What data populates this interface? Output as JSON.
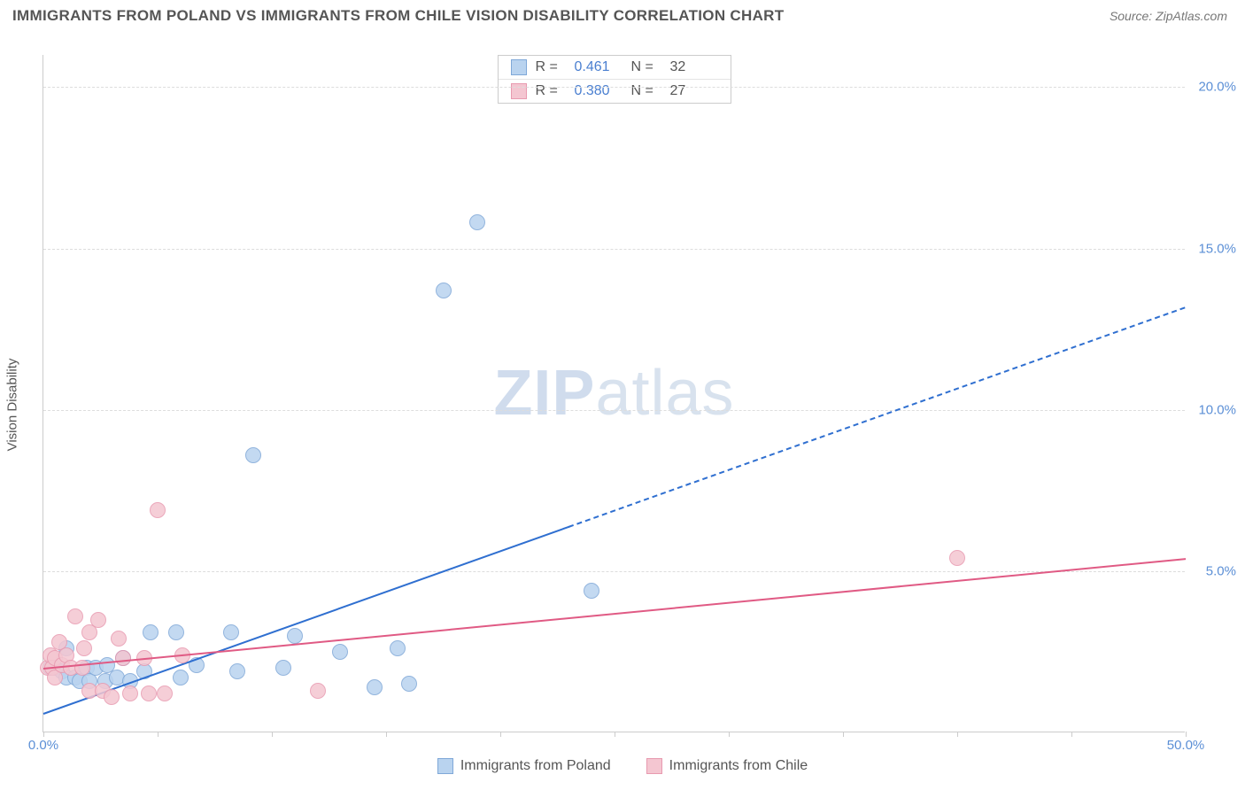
{
  "header": {
    "title": "IMMIGRANTS FROM POLAND VS IMMIGRANTS FROM CHILE VISION DISABILITY CORRELATION CHART",
    "source_prefix": "Source: ",
    "source_name": "ZipAtlas.com"
  },
  "chart": {
    "type": "scatter",
    "y_label": "Vision Disability",
    "watermark1": "ZIP",
    "watermark2": "atlas",
    "background_color": "#ffffff",
    "grid_color": "#dddddd",
    "axis_color": "#cccccc",
    "tick_label_color": "#5b8fd6",
    "xlim": [
      0,
      50
    ],
    "ylim": [
      0,
      21
    ],
    "x_ticks": [
      0,
      5,
      10,
      15,
      20,
      25,
      30,
      35,
      40,
      45,
      50
    ],
    "x_tick_labels": {
      "0": "0.0%",
      "50": "50.0%"
    },
    "y_grid": [
      5,
      10,
      15,
      20
    ],
    "y_tick_labels": {
      "5": "5.0%",
      "10": "10.0%",
      "15": "15.0%",
      "20": "20.0%"
    },
    "series": [
      {
        "key": "poland",
        "label": "Immigrants from Poland",
        "fill": "#b9d3ef",
        "stroke": "#7fa8d8",
        "line_color": "#2f6fd0",
        "marker_radius": 9,
        "marker_opacity": 0.85,
        "r_label": "R =",
        "r_value": "0.461",
        "n_label": "N =",
        "n_value": "32",
        "trend": {
          "x1": 0,
          "y1": 0.6,
          "x2": 50,
          "y2": 13.2,
          "solid_until_x": 23
        },
        "points": [
          [
            0.3,
            2.0
          ],
          [
            0.5,
            2.0
          ],
          [
            0.8,
            1.9
          ],
          [
            1.0,
            2.6
          ],
          [
            1.0,
            1.7
          ],
          [
            1.4,
            1.7
          ],
          [
            1.6,
            1.6
          ],
          [
            1.9,
            2.0
          ],
          [
            2.0,
            1.6
          ],
          [
            2.3,
            2.0
          ],
          [
            2.7,
            1.6
          ],
          [
            2.8,
            2.1
          ],
          [
            3.2,
            1.7
          ],
          [
            3.5,
            2.3
          ],
          [
            3.8,
            1.6
          ],
          [
            4.4,
            1.9
          ],
          [
            4.7,
            3.1
          ],
          [
            5.8,
            3.1
          ],
          [
            6.0,
            1.7
          ],
          [
            6.7,
            2.1
          ],
          [
            8.2,
            3.1
          ],
          [
            8.5,
            1.9
          ],
          [
            9.2,
            8.6
          ],
          [
            10.5,
            2.0
          ],
          [
            11.0,
            3.0
          ],
          [
            13.0,
            2.5
          ],
          [
            14.5,
            1.4
          ],
          [
            15.5,
            2.6
          ],
          [
            16.0,
            1.5
          ],
          [
            17.5,
            13.7
          ],
          [
            19.0,
            15.8
          ],
          [
            24.0,
            4.4
          ]
        ]
      },
      {
        "key": "chile",
        "label": "Immigrants from Chile",
        "fill": "#f4c6d1",
        "stroke": "#e89ab0",
        "line_color": "#e05a84",
        "marker_radius": 9,
        "marker_opacity": 0.85,
        "r_label": "R =",
        "r_value": "0.380",
        "n_label": "N =",
        "n_value": "27",
        "trend": {
          "x1": 0,
          "y1": 2.0,
          "x2": 50,
          "y2": 5.4,
          "solid_until_x": 50
        },
        "points": [
          [
            0.2,
            2.0
          ],
          [
            0.3,
            2.4
          ],
          [
            0.4,
            2.0
          ],
          [
            0.5,
            2.3
          ],
          [
            0.5,
            1.7
          ],
          [
            0.7,
            2.8
          ],
          [
            0.8,
            2.1
          ],
          [
            1.0,
            2.4
          ],
          [
            1.2,
            2.0
          ],
          [
            1.4,
            3.6
          ],
          [
            1.7,
            2.0
          ],
          [
            1.8,
            2.6
          ],
          [
            2.0,
            3.1
          ],
          [
            2.0,
            1.3
          ],
          [
            2.4,
            3.5
          ],
          [
            2.6,
            1.3
          ],
          [
            3.0,
            1.1
          ],
          [
            3.3,
            2.9
          ],
          [
            3.5,
            2.3
          ],
          [
            3.8,
            1.2
          ],
          [
            4.4,
            2.3
          ],
          [
            4.6,
            1.2
          ],
          [
            5.0,
            6.9
          ],
          [
            5.3,
            1.2
          ],
          [
            6.1,
            2.4
          ],
          [
            12.0,
            1.3
          ],
          [
            40.0,
            5.4
          ]
        ]
      }
    ]
  }
}
